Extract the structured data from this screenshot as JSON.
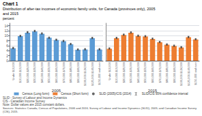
{
  "chart_data": {
    "type": "bar",
    "title": "Chart 1",
    "subtitle": "Distribution of after-tax incomes of economic family units, for Canada (provinces only), 2005 and 2015",
    "ylabel": "percent",
    "categories": [
      "Under $10,000",
      "$10,000-$19,999",
      "$20,000-$29,999",
      "$30,000-$39,999",
      "$40,000-$49,999",
      "$50,000-$59,999",
      "$60,000-$69,999",
      "$70,000-$79,999",
      "$80,000-$89,999",
      "$90,000-$99,999",
      "$100,000-$124,999",
      "$125,000-$149,999",
      "$150,000 and over"
    ],
    "ylim": [
      0,
      15
    ],
    "yticks": [
      0,
      2,
      4,
      6,
      8,
      10,
      12,
      14
    ],
    "grid": true,
    "legend": "bottom",
    "error_label": "SLID/CIS 95% confidence interval",
    "panels": [
      {
        "label": "2005",
        "series": [
          {
            "name": "Census (Long form)",
            "type": "bar",
            "color": "#5b9bd5",
            "values": [
              5.0,
              9.8,
              11.2,
              11.7,
              10.8,
              9.2,
              8.3,
              7.8,
              6.6,
              4.4,
              4.5,
              9.0,
              4.5
            ]
          },
          {
            "name": "SLID (2005)/CIS (2014)",
            "type": "scatter",
            "marker": "circle",
            "color": "#404040",
            "values": [
              5.1,
              9.9,
              11.4,
              11.9,
              10.9,
              9.2,
              8.4,
              7.9,
              6.7,
              4.5,
              4.6,
              9.1,
              4.6
            ],
            "error": 0.3
          }
        ]
      },
      {
        "label": "2015",
        "series": [
          {
            "name": "Census (Short form)",
            "type": "bar",
            "color": "#ed7d31",
            "values": [
              4.8,
              9.0,
              10.3,
              11.2,
              9.9,
              9.7,
              8.7,
              7.4,
              6.4,
              5.9,
              5.3,
              9.4,
              8.5
            ]
          },
          {
            "name": "SLID (2005)/CIS (2014)",
            "type": "scatter",
            "marker": "circle",
            "color": "#404040",
            "values": [
              4.9,
              9.1,
              10.4,
              11.3,
              10.0,
              9.8,
              8.8,
              7.5,
              6.5,
              6.0,
              5.4,
              9.5,
              8.6
            ],
            "error": 0.3
          }
        ]
      }
    ],
    "footnotes": [
      "SLID - Survey of Labour and Income Dynamics",
      "CIS - Canadian Income Survey",
      "Note: Dollar values are 2015 constant dollars.",
      "Sources: Statistics Canada, Census of Populations, 2006 and 2016; Survey of Labour and Income Dynamics (SLID), 2005; and Canadian Income Survey (CIS), 2015."
    ]
  }
}
